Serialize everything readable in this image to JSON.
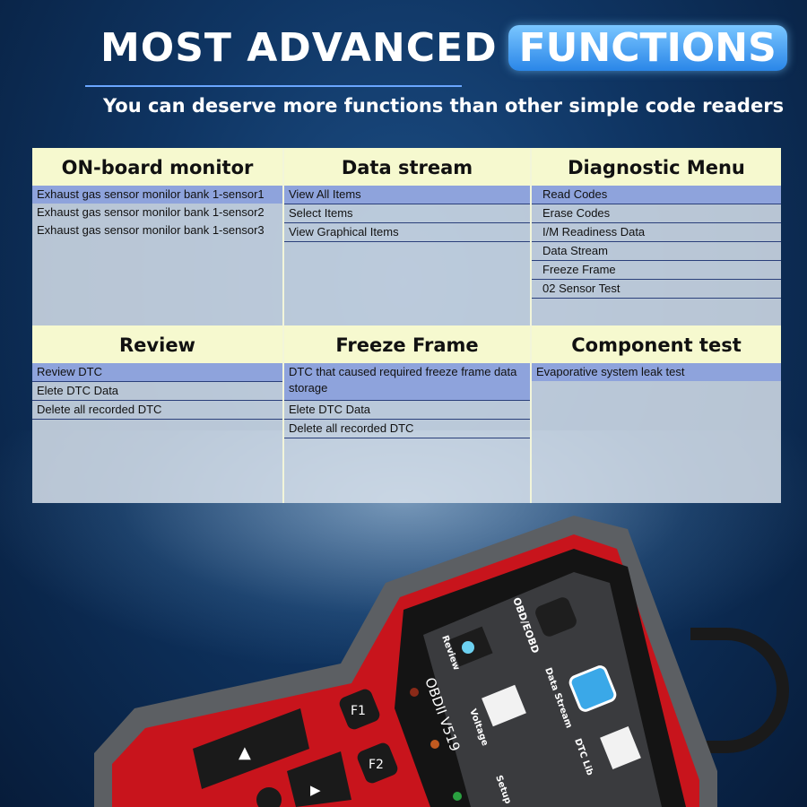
{
  "header": {
    "title_part1": "MOST ADVANCED",
    "title_part2": "FUNCTIONS",
    "subtitle": "You can deserve more functions than other simple code readers"
  },
  "sections": [
    {
      "title": "ON-board monitor",
      "items": [
        "Exhaust gas sensor monilor bank 1-sensor1",
        "Exhaust gas sensor monilor bank 1-sensor2",
        "Exhaust gas sensor monilor bank 1-sensor3"
      ]
    },
    {
      "title": "Data stream",
      "items": [
        "View All Items",
        "Select Items",
        "View Graphical Items"
      ]
    },
    {
      "title": "Diagnostic Menu",
      "items": [
        "Read Codes",
        "Erase Codes",
        "I/M Readiness Data",
        "Data Stream",
        "Freeze Frame",
        "02 Sensor Test"
      ]
    },
    {
      "title": "Review",
      "items": [
        "Review DTC",
        "Elete DTC Data",
        "Delete all recorded DTC"
      ]
    },
    {
      "title": "Freeze Frame",
      "items": [
        "DTC that caused required freeze frame data storage",
        "Elete DTC Data",
        "Delete all recorded DTC"
      ]
    },
    {
      "title": "Component test",
      "items": [
        "Evaporative system leak test"
      ]
    }
  ],
  "device": {
    "model": "OBDII V519",
    "buttons": [
      "F1",
      "F2"
    ],
    "screen_menu": [
      "Review",
      "OBD/EOBD",
      "Voltage",
      "Data Stream",
      "DTC Lib",
      "Setup"
    ],
    "body_color": "#c8141c",
    "screen_accent": "#3aa8e8"
  }
}
